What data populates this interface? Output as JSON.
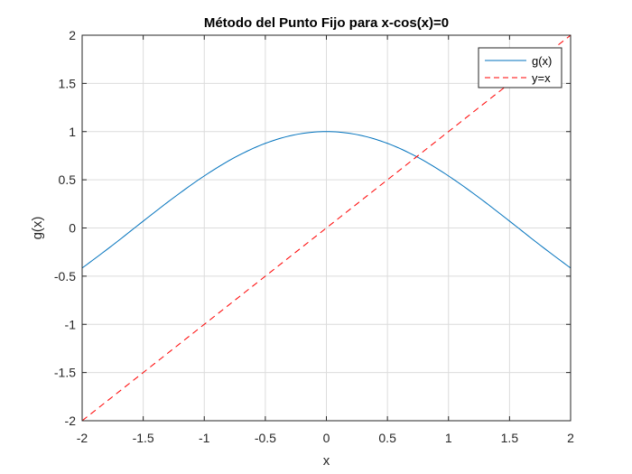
{
  "chart_data": {
    "type": "line",
    "title": "Método del Punto Fijo para x-cos(x)=0",
    "xlabel": "x",
    "ylabel": "g(x)",
    "xlim": [
      -2,
      2
    ],
    "ylim": [
      -2,
      2
    ],
    "grid": true,
    "legend_position": "top-right",
    "x_ticks": [
      -2,
      -1.5,
      -1,
      -0.5,
      0,
      0.5,
      1,
      1.5,
      2
    ],
    "x_tick_labels": [
      "-2",
      "-1.5",
      "-1",
      "-0.5",
      "0",
      "0.5",
      "1",
      "1.5",
      "2"
    ],
    "y_ticks": [
      -2,
      -1.5,
      -1,
      -0.5,
      0,
      0.5,
      1,
      1.5,
      2
    ],
    "y_tick_labels": [
      "-2",
      "-1.5",
      "-1",
      "-0.5",
      "0",
      "0.5",
      "1",
      "1.5",
      "2"
    ],
    "x": [
      -2,
      -1.75,
      -1.5,
      -1.25,
      -1,
      -0.75,
      -0.5,
      -0.25,
      0,
      0.25,
      0.5,
      0.75,
      1,
      1.25,
      1.5,
      1.75,
      2
    ],
    "series": [
      {
        "name": "g(x)",
        "color": "#0072BD",
        "style": "solid",
        "values": [
          -0.416,
          -0.178,
          0.071,
          0.315,
          0.54,
          0.732,
          0.878,
          0.969,
          1.0,
          0.969,
          0.878,
          0.732,
          0.54,
          0.315,
          0.071,
          -0.178,
          -0.416
        ]
      },
      {
        "name": "y=x",
        "color": "#FF0000",
        "style": "dashed",
        "values": [
          -2,
          -1.75,
          -1.5,
          -1.25,
          -1,
          -0.75,
          -0.5,
          -0.25,
          0,
          0.25,
          0.5,
          0.75,
          1,
          1.25,
          1.5,
          1.75,
          2
        ]
      }
    ]
  }
}
